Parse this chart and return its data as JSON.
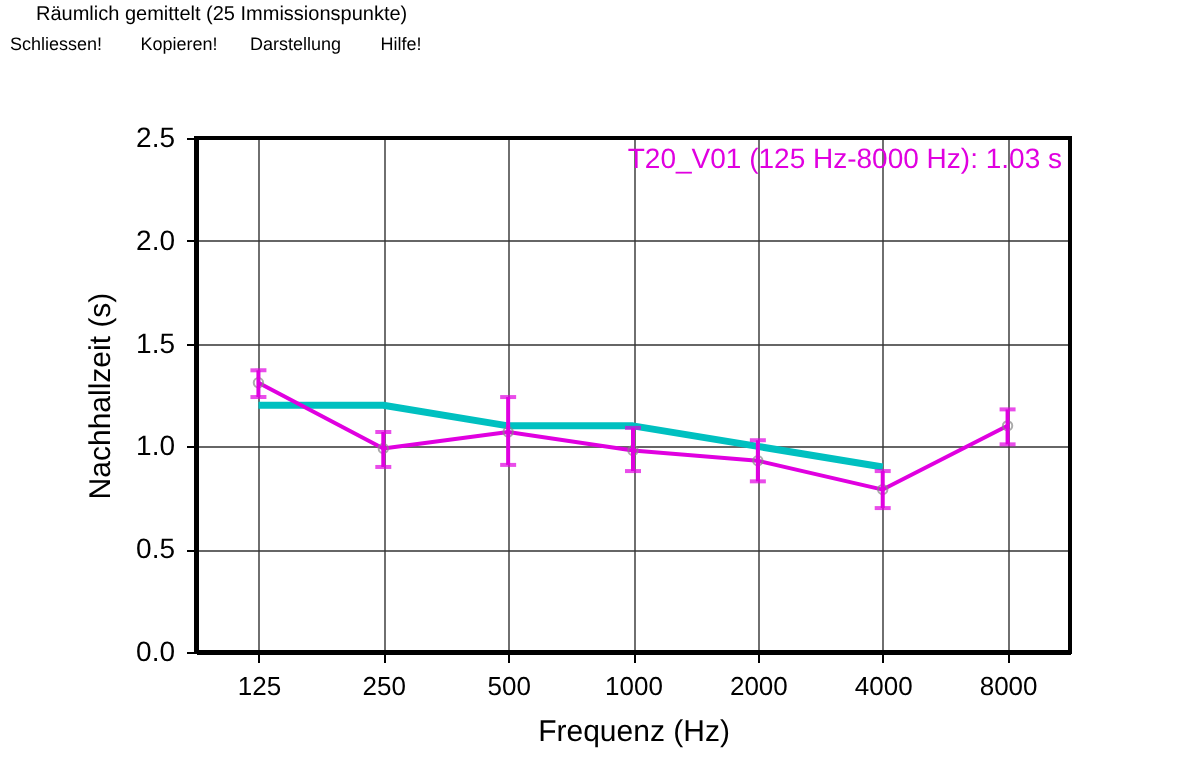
{
  "chart_data": {
    "type": "line",
    "title": "Räumlich gemittelt (25 Immissionspunkte)",
    "annotations": [
      "Schliessen!",
      "Kopieren!",
      "Darstellung",
      "Hilfe!",
      "T20_V01 (125 Hz-8000 Hz): 1.03 s"
    ],
    "xlabel": "Frequenz (Hz)",
    "ylabel": "Nachhallzeit (s)",
    "categories": [
      "125",
      "250",
      "500",
      "1000",
      "2000",
      "4000",
      "8000"
    ],
    "series": [
      {
        "color": "#00c0c0",
        "marker": "none",
        "values": [
          1.2,
          1.2,
          1.1,
          1.1,
          1.0,
          0.9,
          null
        ]
      },
      {
        "color": "#e000e0",
        "marker": "circle",
        "values": [
          1.31,
          0.99,
          1.07,
          0.98,
          0.93,
          0.79,
          1.1
        ],
        "errors": [
          [
            1.24,
            1.37
          ],
          [
            0.9,
            1.07
          ],
          [
            0.91,
            1.24
          ],
          [
            0.88,
            1.09
          ],
          [
            0.83,
            1.03
          ],
          [
            0.7,
            0.88
          ],
          [
            1.01,
            1.18
          ]
        ]
      }
    ],
    "ylim": [
      0,
      2.5
    ],
    "yticks": [
      {
        "value": 0,
        "label": "0.0"
      },
      {
        "value": 0.5,
        "label": "0.5"
      },
      {
        "value": 1,
        "label": "1.0"
      },
      {
        "value": 1.5,
        "label": "1.5"
      },
      {
        "value": 2,
        "label": "2.0"
      },
      {
        "value": 2.5,
        "label": "2.5"
      }
    ],
    "grid": true
  }
}
